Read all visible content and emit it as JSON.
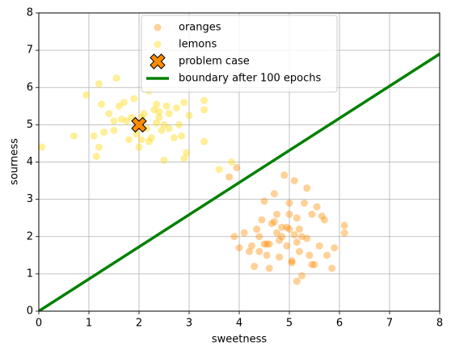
{
  "chart_data": {
    "type": "scatter",
    "xlabel": "sweetness",
    "ylabel": "sourness",
    "xlim": [
      0,
      8
    ],
    "ylim": [
      0,
      8
    ],
    "xticks": [
      0,
      1,
      2,
      3,
      4,
      5,
      6,
      7,
      8
    ],
    "yticks": [
      0,
      1,
      2,
      3,
      4,
      5,
      6,
      7,
      8
    ],
    "grid": true,
    "legend": "upper center",
    "series": [
      {
        "name": "oranges",
        "type": "scatter",
        "color": "#ff8c00",
        "alpha": 0.4,
        "x": [
          3.9,
          3.8,
          3.95,
          4.0,
          4.1,
          4.2,
          4.25,
          4.3,
          4.35,
          4.4,
          4.45,
          4.5,
          4.55,
          4.5,
          4.6,
          4.65,
          4.7,
          4.75,
          4.8,
          4.8,
          4.85,
          4.9,
          4.95,
          5.0,
          5.0,
          5.05,
          5.1,
          5.1,
          5.15,
          5.2,
          5.2,
          5.25,
          5.3,
          5.35,
          5.35,
          5.4,
          5.45,
          5.5,
          5.55,
          5.6,
          5.65,
          5.7,
          5.75,
          5.85,
          5.9,
          6.1,
          6.1,
          5.05,
          4.75,
          4.6,
          4.85,
          5.15,
          5.45,
          5.0,
          4.4,
          4.55,
          4.95,
          5.25,
          4.7,
          5.15
        ],
        "y": [
          2.0,
          3.6,
          3.85,
          1.7,
          2.1,
          1.6,
          1.75,
          1.2,
          2.2,
          2.0,
          2.45,
          1.8,
          1.5,
          2.95,
          1.8,
          2.35,
          3.15,
          2.6,
          1.9,
          1.45,
          2.25,
          3.65,
          1.75,
          2.6,
          2.9,
          1.3,
          3.5,
          2.05,
          2.5,
          1.6,
          2.2,
          0.95,
          2.9,
          1.95,
          3.3,
          1.5,
          2.6,
          1.25,
          2.8,
          1.75,
          2.55,
          2.45,
          1.5,
          1.15,
          1.7,
          2.3,
          2.1,
          1.35,
          2.1,
          1.15,
          2.0,
          0.8,
          1.25,
          2.2,
          1.6,
          1.8,
          2.25,
          2.0,
          2.4,
          1.85
        ]
      },
      {
        "name": "lemons",
        "type": "scatter",
        "color": "#ffd700",
        "alpha": 0.4,
        "x": [
          0.06,
          0.7,
          0.95,
          1.2,
          1.1,
          1.15,
          1.2,
          1.25,
          1.3,
          1.4,
          1.5,
          1.5,
          1.55,
          1.6,
          1.7,
          1.75,
          1.8,
          1.85,
          1.9,
          1.95,
          2.0,
          2.05,
          2.1,
          2.15,
          2.2,
          2.2,
          2.25,
          2.3,
          2.35,
          2.4,
          2.45,
          2.5,
          2.5,
          2.55,
          2.6,
          2.7,
          2.75,
          2.8,
          2.85,
          2.9,
          2.95,
          3.0,
          3.3,
          3.3,
          3.3,
          1.65,
          2.35,
          2.4,
          1.95,
          2.05,
          2.6,
          2.9,
          3.6,
          3.85
        ],
        "y": [
          4.4,
          4.7,
          5.8,
          6.1,
          4.7,
          4.15,
          4.4,
          5.55,
          4.8,
          5.3,
          5.1,
          4.85,
          6.25,
          5.5,
          5.6,
          5.1,
          4.6,
          5.2,
          5.7,
          4.75,
          4.4,
          4.6,
          5.3,
          4.9,
          4.55,
          5.9,
          4.65,
          5.4,
          5.55,
          5.2,
          4.85,
          5.0,
          4.05,
          5.5,
          5.3,
          4.65,
          5.45,
          5.0,
          4.7,
          5.6,
          4.25,
          5.25,
          5.65,
          5.4,
          4.55,
          5.15,
          5.05,
          5.35,
          4.95,
          5.2,
          4.9,
          4.1,
          3.8,
          4.0
        ]
      },
      {
        "name": "problem case",
        "type": "marker",
        "color": "#ff8c00",
        "x": [
          2
        ],
        "y": [
          5
        ]
      },
      {
        "name": "boundary after 100 epochs",
        "type": "line",
        "color": "#008000",
        "x": [
          0,
          8
        ],
        "y": [
          0,
          6.9
        ]
      }
    ]
  }
}
